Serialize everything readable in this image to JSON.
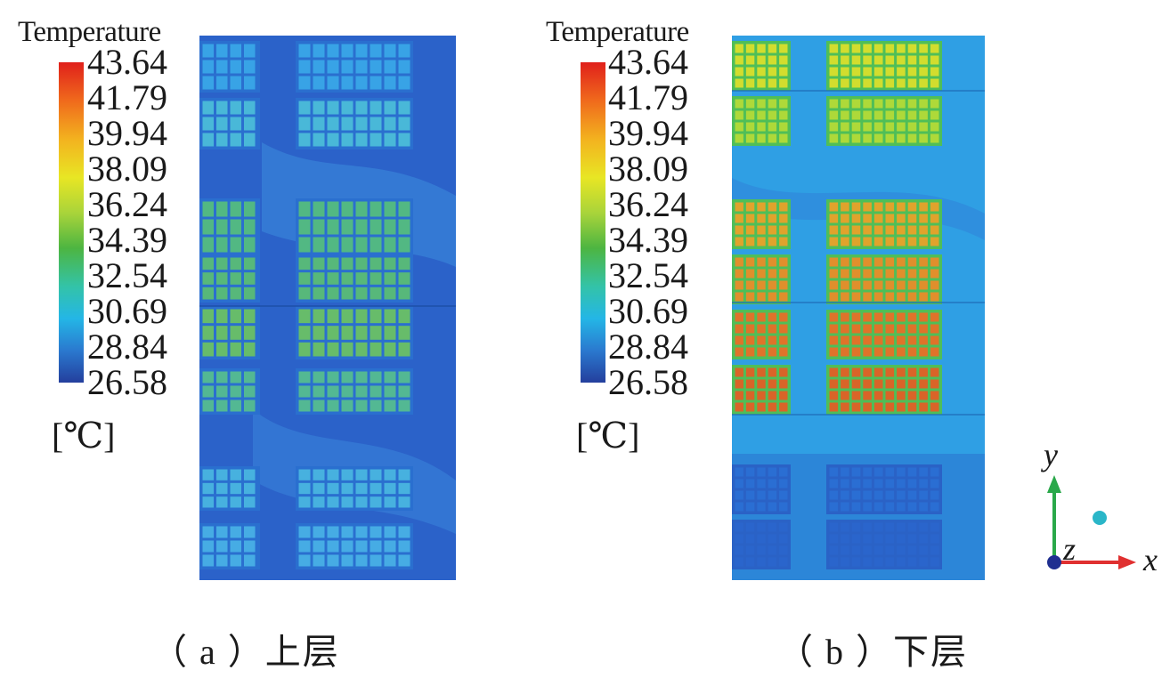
{
  "panels": [
    {
      "legend_title": "Temperature",
      "ticks": [
        "43.64",
        "41.79",
        "39.94",
        "38.09",
        "36.24",
        "34.39",
        "32.54",
        "30.69",
        "28.84",
        "26.58"
      ],
      "unit": "[℃]",
      "caption": "（ a ）上层"
    },
    {
      "legend_title": "Temperature",
      "ticks": [
        "43.64",
        "41.79",
        "39.94",
        "38.09",
        "36.24",
        "34.39",
        "32.54",
        "30.69",
        "28.84",
        "26.58"
      ],
      "unit": "[℃]",
      "caption": "（ b ）下层"
    }
  ],
  "axes": {
    "x": "x",
    "y": "y",
    "z": "z"
  },
  "colors": {
    "x_axis": "#e03030",
    "y_axis": "#2aa84a",
    "z_axis": "#1f2f90",
    "marker": "#2ab6c8"
  }
}
